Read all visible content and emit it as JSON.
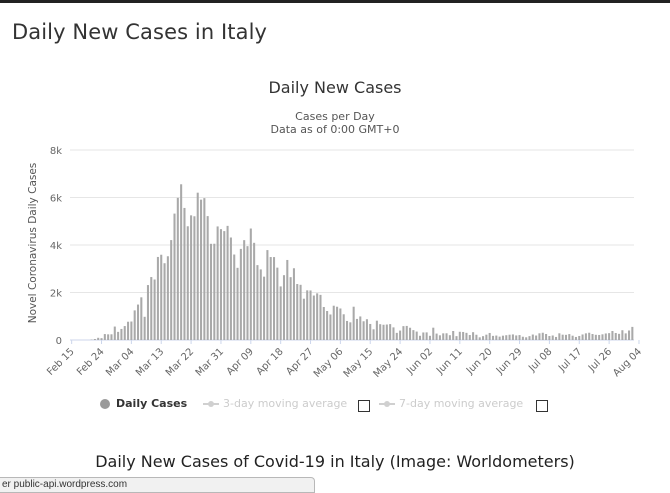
{
  "page": {
    "heading": "Daily New Cases in Italy",
    "caption": "Daily New Cases of Covid-19 in Italy (Image: Worldometers)",
    "status_url": "er public-api.wordpress.com"
  },
  "legend": {
    "daily_cases": "Daily Cases",
    "ma3": "3-day moving average",
    "ma7": "7-day moving average"
  },
  "colors": {
    "bar": "#a9a9a9",
    "grid": "#e6e6e6",
    "axis_text": "#666666",
    "legend_inactive": "#cccccc"
  },
  "chart_data": {
    "type": "bar",
    "title": "Daily New Cases",
    "subtitle": "Cases per Day",
    "subtitle2": "Data as of 0:00 GMT+0",
    "ylabel": "Novel Coronavirus Daily Cases",
    "ylim": [
      0,
      8000
    ],
    "yticks": [
      0,
      2000,
      4000,
      6000,
      8000
    ],
    "ytick_labels": [
      "0",
      "2k",
      "4k",
      "6k",
      "8k"
    ],
    "xtick_labels": [
      "Feb 15",
      "Feb 24",
      "Mar 04",
      "Mar 13",
      "Mar 22",
      "Mar 31",
      "Apr 09",
      "Apr 18",
      "Apr 27",
      "May 06",
      "May 15",
      "May 24",
      "Jun 02",
      "Jun 11",
      "Jun 20",
      "Jun 29",
      "Jul 08",
      "Jul 17",
      "Jul 26",
      "Aug 04"
    ],
    "start_date": "Feb 15",
    "values": [
      0,
      0,
      0,
      0,
      0,
      0,
      17,
      42,
      93,
      78,
      250,
      238,
      240,
      566,
      342,
      466,
      587,
      769,
      778,
      1247,
      1492,
      1797,
      977,
      2313,
      2651,
      2547,
      3497,
      3590,
      3233,
      3526,
      4207,
      5322,
      5986,
      6557,
      5560,
      4789,
      5249,
      5210,
      6203,
      5909,
      5974,
      5217,
      4050,
      4053,
      4782,
      4668,
      4585,
      4805,
      4316,
      3599,
      3039,
      3836,
      4204,
      3951,
      4694,
      4092,
      3153,
      2972,
      2667,
      3786,
      3493,
      3491,
      3047,
      2256,
      2729,
      3370,
      2646,
      3021,
      2357,
      2324,
      1739,
      2091,
      2086,
      1872,
      1965,
      1900,
      1389,
      1221,
      1075,
      1444,
      1401,
      1327,
      1083,
      802,
      744,
      1402,
      888,
      992,
      789,
      875,
      675,
      451,
      813,
      665,
      642,
      652,
      669,
      531,
      300,
      397,
      584,
      593,
      516,
      416,
      355,
      178,
      318,
      321,
      177,
      518,
      270,
      197,
      280,
      283,
      202,
      379,
      163,
      346,
      338,
      301,
      210,
      329,
      221,
      113,
      162,
      224,
      296,
      174,
      187,
      142,
      182,
      201,
      223,
      235,
      192,
      208,
      138,
      114,
      163,
      230,
      188,
      282,
      306,
      252,
      168,
      190,
      129,
      282,
      224,
      218,
      249,
      181,
      128,
      170,
      233,
      280,
      306,
      252,
      219,
      212,
      239,
      275,
      289,
      379,
      295,
      259,
      412,
      279,
      401,
      552
    ]
  }
}
